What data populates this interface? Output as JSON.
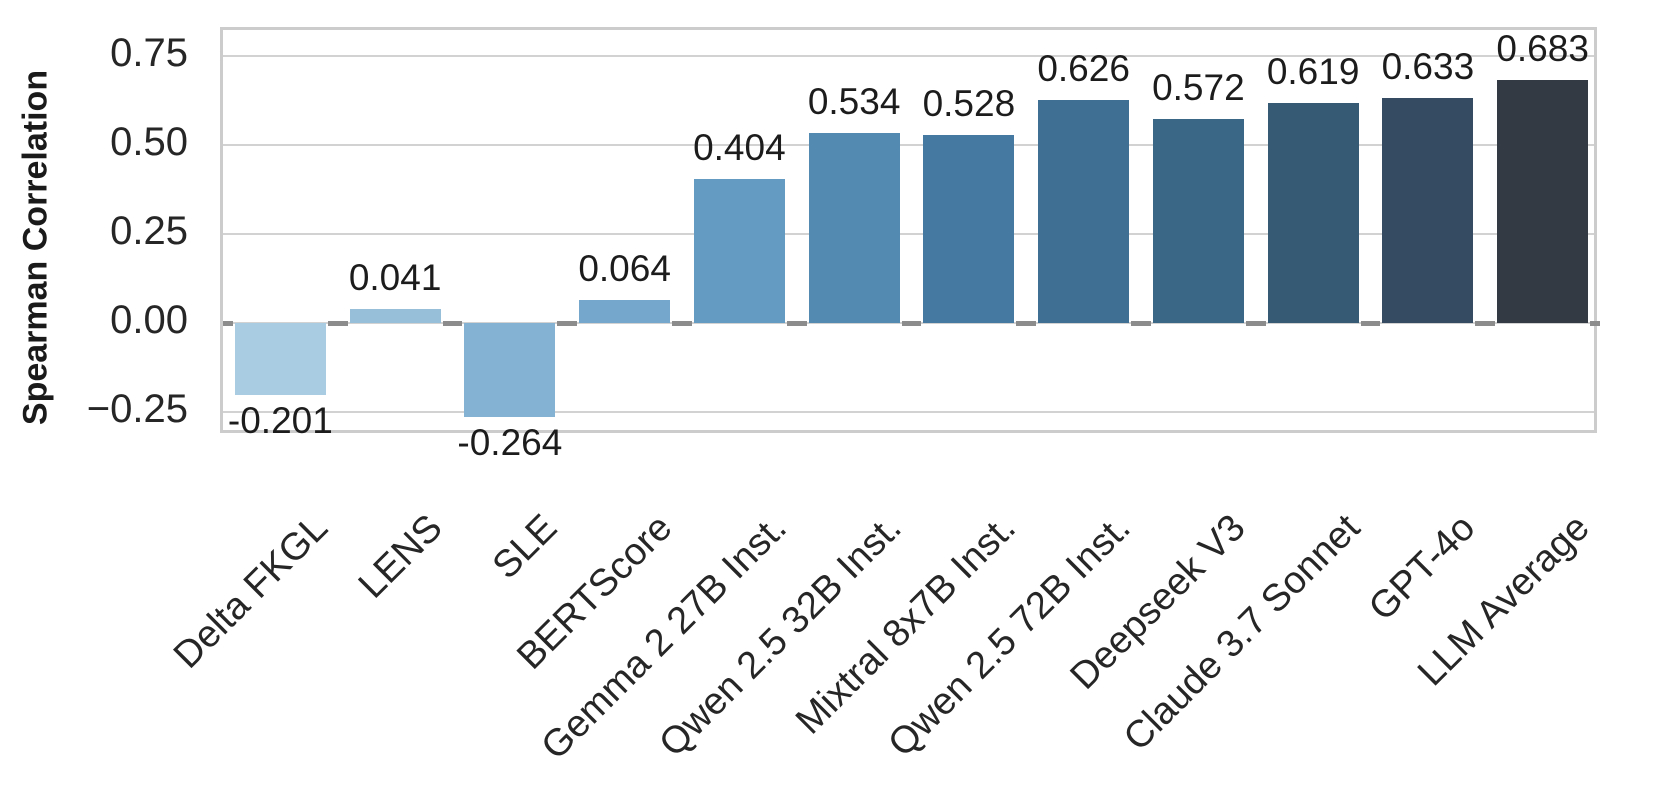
{
  "figure": {
    "ylabel": "Spearman Correlation"
  },
  "chart_data": {
    "type": "bar",
    "title": "",
    "xlabel": "",
    "ylabel": "Spearman Correlation",
    "categories": [
      "Delta FKGL",
      "LENS",
      "SLE",
      "BERTScore",
      "Gemma 2 27B Inst.",
      "Qwen 2.5 32B Inst.",
      "Mixtral 8x7B Inst.",
      "Qwen 2.5 72B Inst.",
      "Deepseek V3",
      "Claude 3.7 Sonnet",
      "GPT-4o",
      "LLM Average"
    ],
    "values": [
      -0.201,
      0.041,
      -0.264,
      0.064,
      0.404,
      0.534,
      0.528,
      0.626,
      0.572,
      0.619,
      0.633,
      0.683
    ],
    "bar_labels": [
      "-0.201",
      "0.041",
      "-0.264",
      "0.064",
      "0.404",
      "0.534",
      "0.528",
      "0.626",
      "0.572",
      "0.619",
      "0.633",
      "0.683"
    ],
    "bar_colors": [
      "#a9cce3",
      "#97bfda",
      "#84b2d3",
      "#74a7cb",
      "#649bc3",
      "#528ab2",
      "#4679a1",
      "#3f7093",
      "#3b6787",
      "#375a74",
      "#344b61",
      "#333a43"
    ],
    "yticks": {
      "values": [
        0.75,
        0.5,
        0.25,
        0.0,
        -0.25
      ],
      "labels": [
        "0.75",
        "0.50",
        "0.25",
        "0.00",
        "−0.25"
      ]
    },
    "ylim": [
      -0.317,
      0.823
    ],
    "grid": true,
    "grid_axis": "y",
    "legend": null,
    "zero_line": true,
    "bar_orientation": "vertical"
  },
  "colors": {
    "background": "#ffffff",
    "grid": "#d2d2d2",
    "spine": "#cccccc",
    "zero_dash": "#8c8c8c",
    "bar_label": "#1c1c1c",
    "tick_label": "#262626",
    "axis_label": "#1a1a1a"
  }
}
